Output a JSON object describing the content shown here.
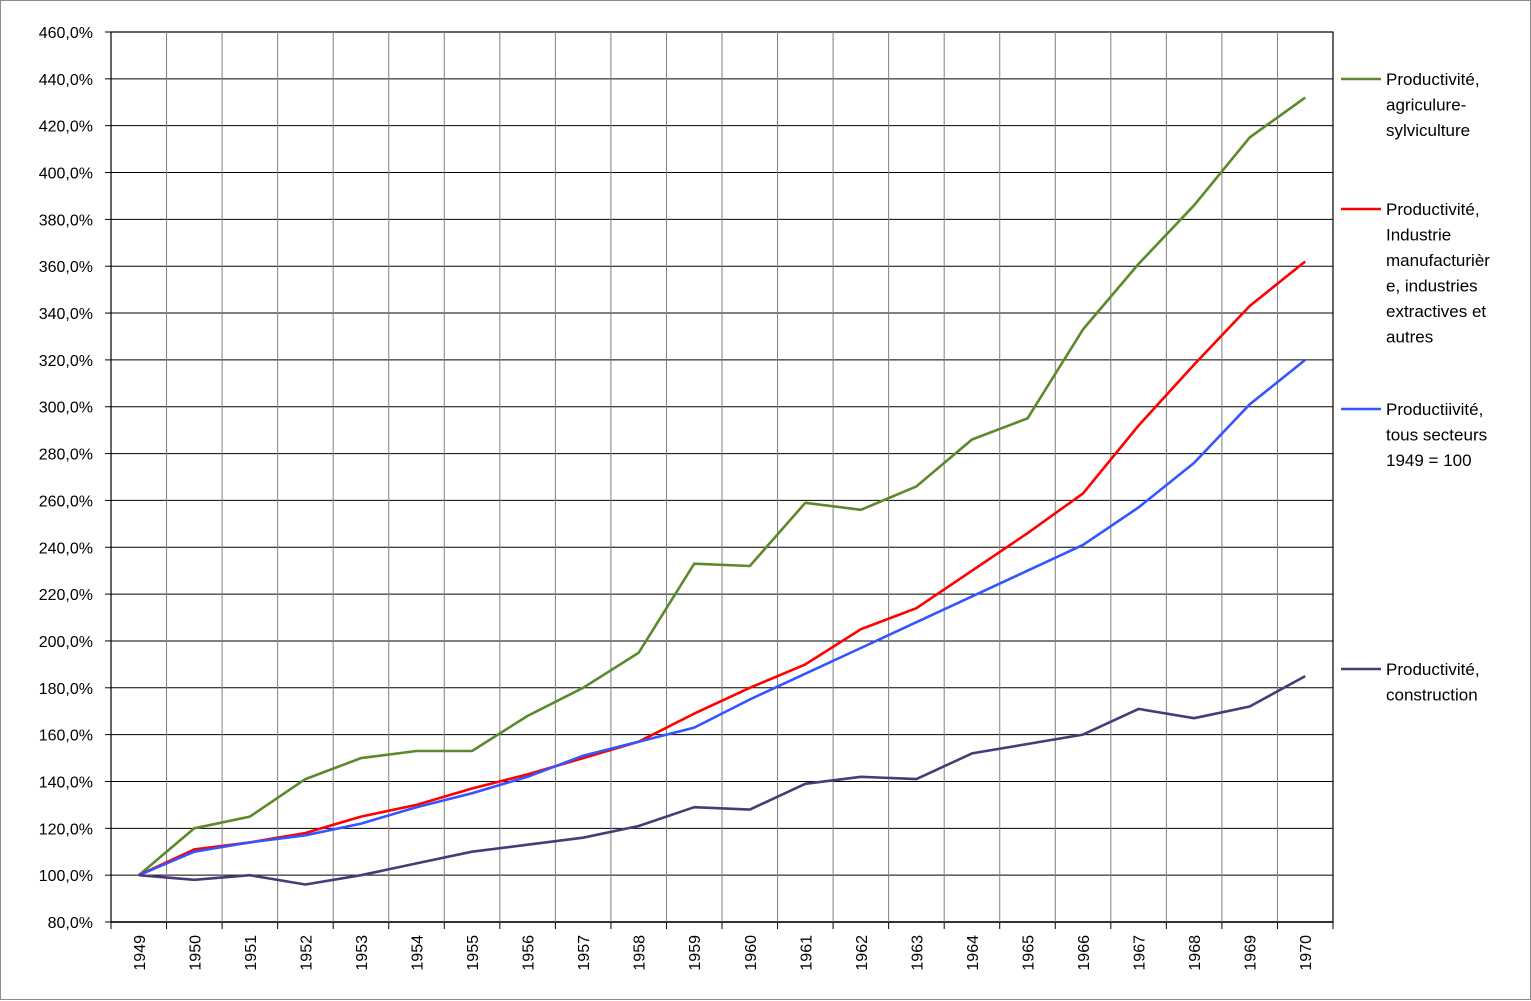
{
  "chart_data": {
    "type": "line",
    "title": "",
    "xlabel": "",
    "ylabel": "",
    "ylim": [
      80,
      460
    ],
    "y_tick_step": 20,
    "y_tick_labels": [
      "80,0%",
      "100,0%",
      "120,0%",
      "140,0%",
      "160,0%",
      "180,0%",
      "200,0%",
      "220,0%",
      "240,0%",
      "260,0%",
      "280,0%",
      "300,0%",
      "320,0%",
      "340,0%",
      "360,0%",
      "380,0%",
      "400,0%",
      "420,0%",
      "440,0%",
      "460,0%"
    ],
    "categories": [
      "1949",
      "1950",
      "1951",
      "1952",
      "1953",
      "1954",
      "1955",
      "1956",
      "1957",
      "1958",
      "1959",
      "1960",
      "1961",
      "1962",
      "1963",
      "1964",
      "1965",
      "1966",
      "1967",
      "1968",
      "1969",
      "1970"
    ],
    "grid": true,
    "legend_position": "right",
    "series": [
      {
        "name": "Productivité, agriculure-sylviculture",
        "legend_lines": [
          "Productivité,",
          "agriculure-",
          "sylviculture"
        ],
        "color": "#5c8a2a",
        "values": [
          100,
          120,
          125,
          141,
          150,
          153,
          153,
          168,
          180,
          195,
          233,
          232,
          259,
          256,
          266,
          286,
          295,
          333,
          361,
          386,
          415,
          432
        ]
      },
      {
        "name": "Productivité, Industrie manufacturière, industries extractives et autres",
        "legend_lines": [
          "Productivité,",
          "Industrie",
          "manufacturièr",
          "e, industries",
          "extractives et",
          "autres"
        ],
        "color": "#ff0000",
        "values": [
          100,
          111,
          114,
          118,
          125,
          130,
          137,
          143,
          150,
          157,
          169,
          180,
          190,
          205,
          214,
          230,
          246,
          263,
          292,
          318,
          343,
          362
        ]
      },
      {
        "name": "Productiivité, tous secteurs 1949 = 100",
        "legend_lines": [
          "Productiivité,",
          "tous secteurs",
          "1949 = 100"
        ],
        "color": "#3355ff",
        "values": [
          100,
          110,
          114,
          117,
          122,
          129,
          135,
          142,
          151,
          157,
          163,
          175,
          186,
          197,
          208,
          219,
          230,
          241,
          257,
          276,
          301,
          320
        ]
      },
      {
        "name": "Productivité, construction",
        "legend_lines": [
          "Productivité,",
          "construction"
        ],
        "color": "#4b3a78",
        "values": [
          100,
          98,
          100,
          96,
          100,
          105,
          110,
          113,
          116,
          121,
          129,
          128,
          139,
          142,
          141,
          152,
          156,
          160,
          171,
          167,
          172,
          185
        ]
      }
    ]
  }
}
